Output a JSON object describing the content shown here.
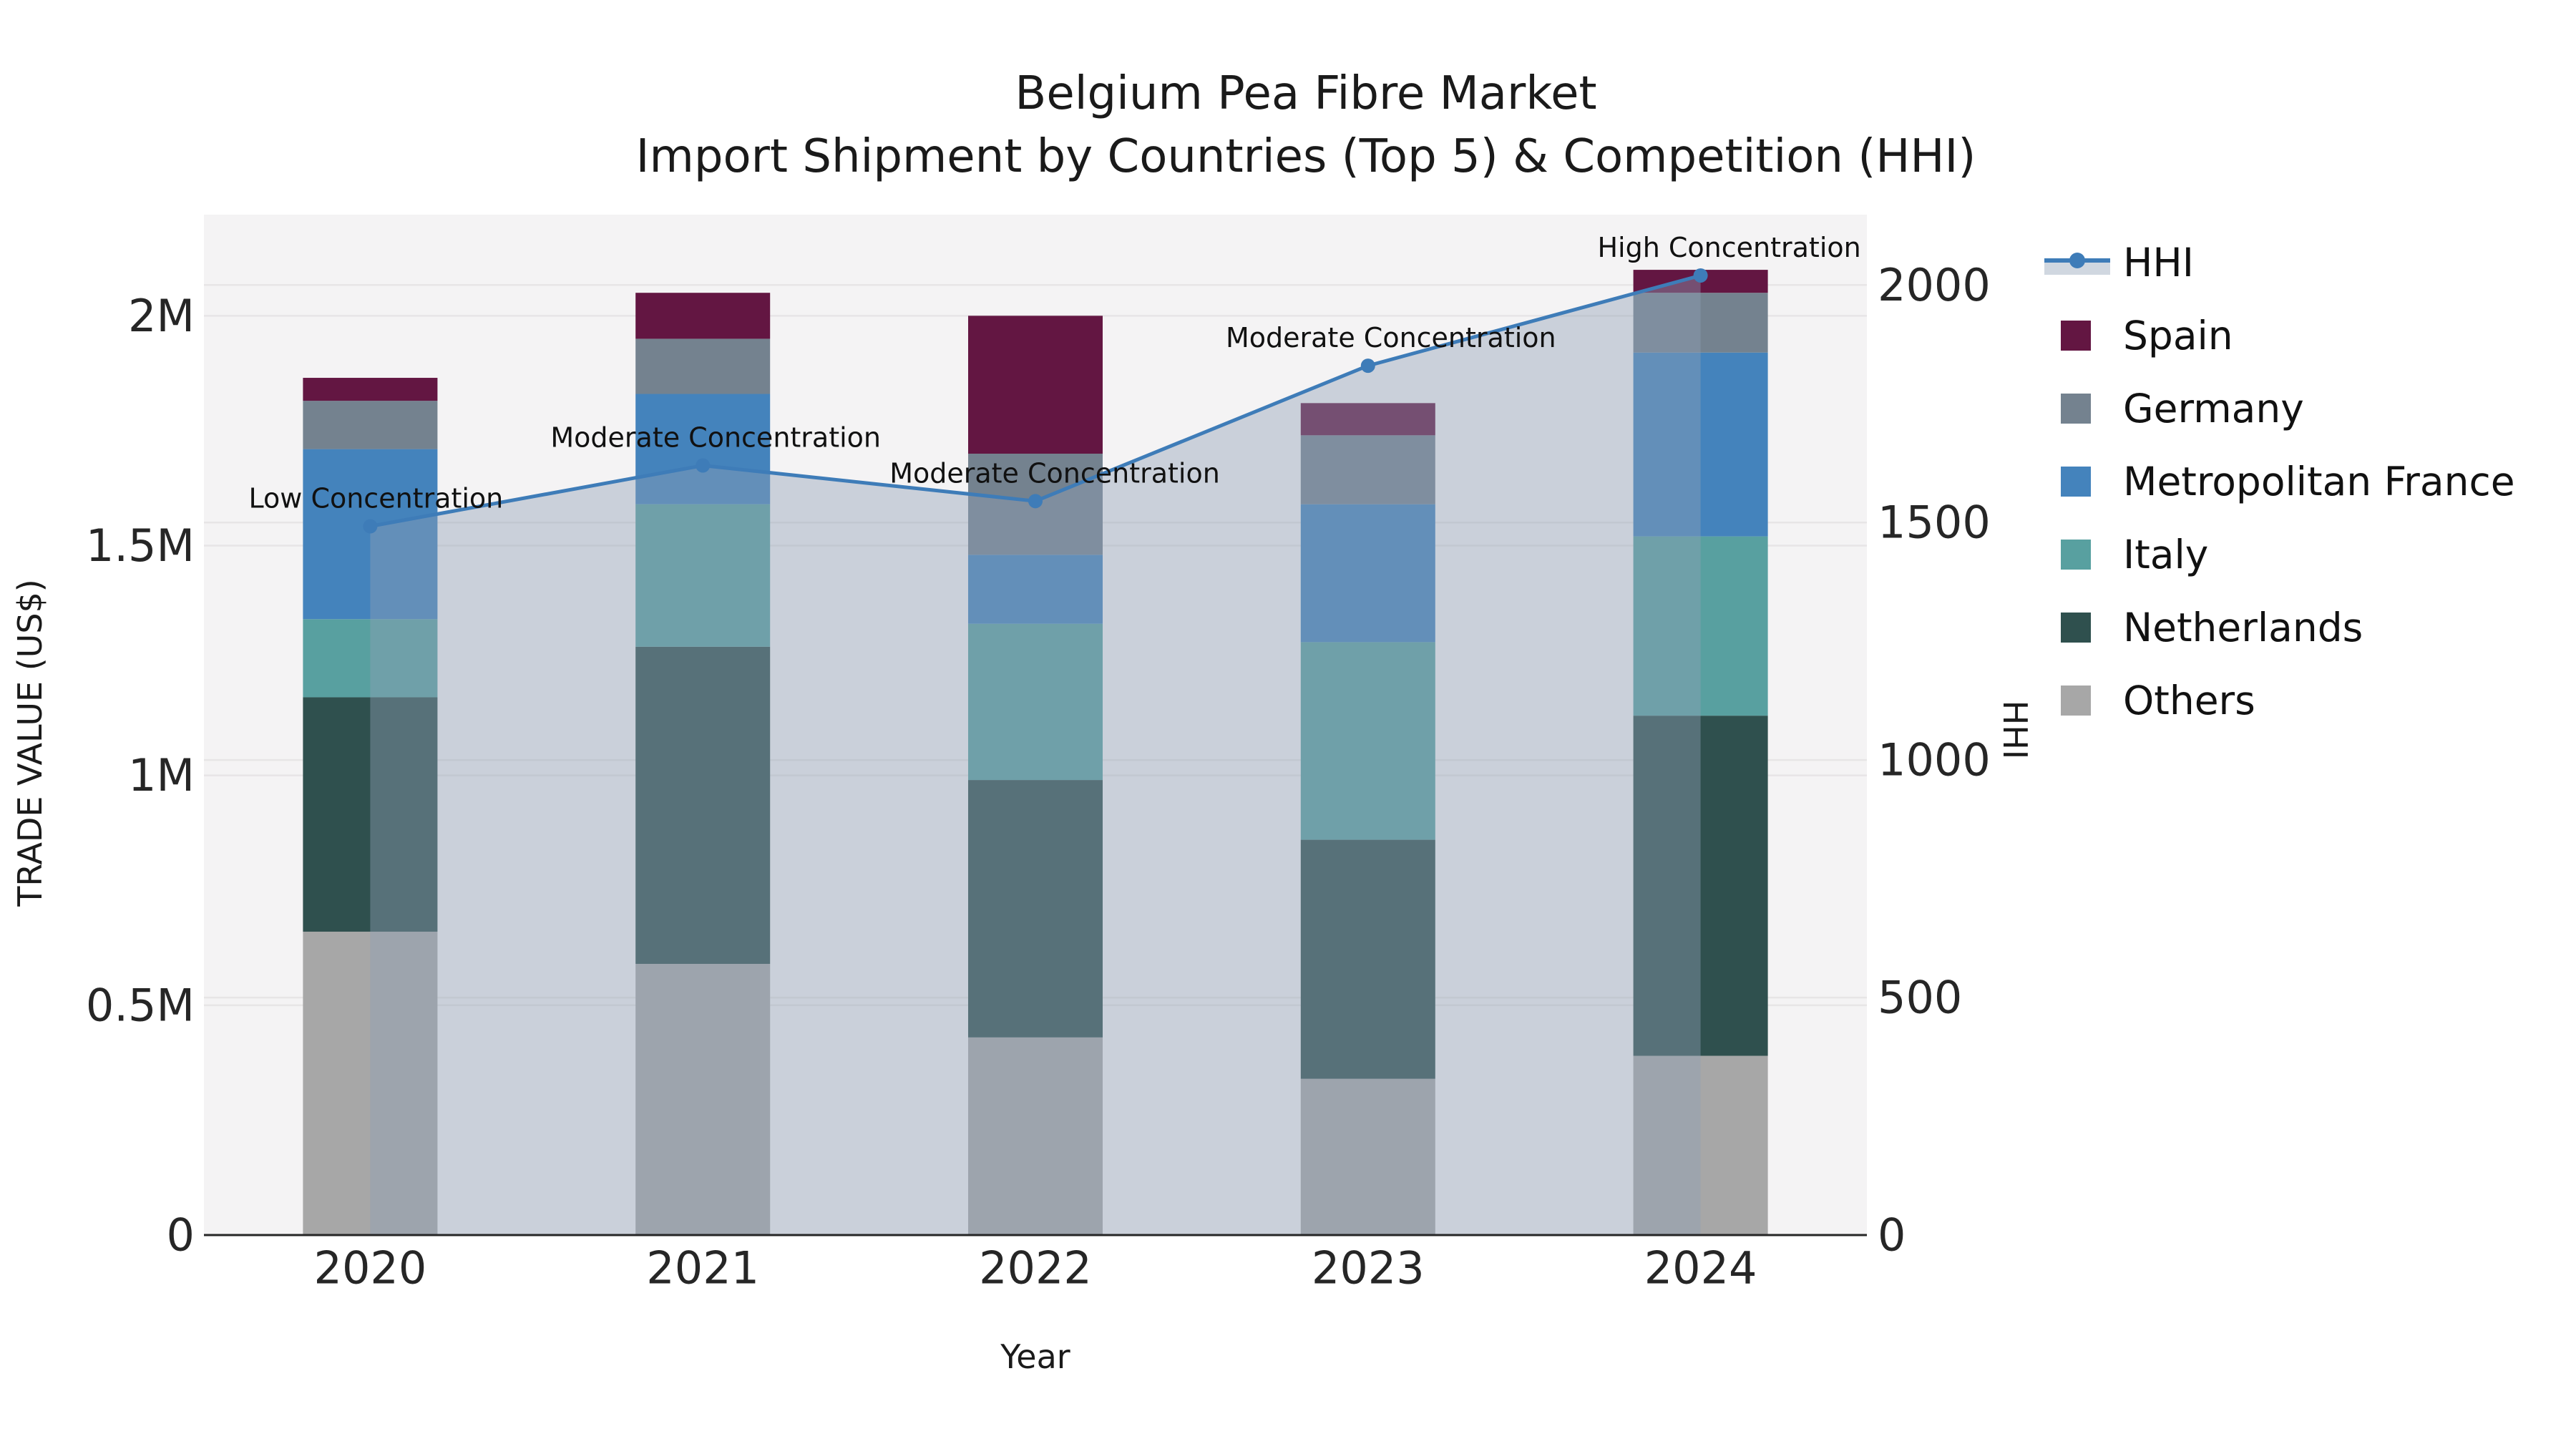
{
  "title": {
    "line1": "Belgium Pea Fibre Market",
    "line2": "Import Shipment by Countries (Top 5) & Competition (HHI)"
  },
  "axes": {
    "x": {
      "label": "Year",
      "categories": [
        "2020",
        "2021",
        "2022",
        "2023",
        "2024"
      ]
    },
    "y_left": {
      "label": "TRADE VALUE (US$)",
      "tick_labels": [
        "0",
        "0.5M",
        "1M",
        "1.5M",
        "2M"
      ],
      "tick_values": [
        0,
        0.5,
        1,
        1.5,
        2
      ],
      "range_millions": [
        0,
        2.22
      ]
    },
    "y_right": {
      "label": "HHI",
      "tick_labels": [
        "0",
        "500",
        "1000",
        "1500",
        "2000"
      ],
      "tick_values": [
        0,
        500,
        1000,
        1500,
        2000
      ],
      "range": [
        0,
        2148
      ]
    }
  },
  "legend": [
    {
      "label": "HHI",
      "type": "line",
      "color": "#3E7CB8"
    },
    {
      "label": "Spain",
      "type": "swatch",
      "color": "#631642"
    },
    {
      "label": "Germany",
      "type": "swatch",
      "color": "#74828F"
    },
    {
      "label": "Metropolitan France",
      "type": "swatch",
      "color": "#4483BC"
    },
    {
      "label": "Italy",
      "type": "swatch",
      "color": "#58A0A0"
    },
    {
      "label": "Netherlands",
      "type": "swatch",
      "color": "#2F504E"
    },
    {
      "label": "Others",
      "type": "swatch",
      "color": "#A7A7A7"
    }
  ],
  "colors": {
    "figure_bg": "#ffffff",
    "plot_bg": "#f4f3f4",
    "grid": "#e7e5e6",
    "axis_line": "#262626",
    "hhi_line": "#3E7CB8",
    "hhi_fill": "rgba(143,160,180,0.42)"
  },
  "chart_data": {
    "type": "stacked-bar+line",
    "title": "Belgium Pea Fibre Market — Import Shipment by Countries (Top 5) & Competition (HHI)",
    "xlabel": "Year",
    "ylabel_left": "TRADE VALUE (US$)",
    "ylabel_right": "HHI",
    "categories": [
      "2020",
      "2021",
      "2022",
      "2023",
      "2024"
    ],
    "unit": "millions of US$",
    "series": [
      {
        "name": "Others",
        "color": "#A7A7A7",
        "values": [
          0.66,
          0.59,
          0.43,
          0.34,
          0.39
        ]
      },
      {
        "name": "Netherlands",
        "color": "#2F504E",
        "values": [
          0.51,
          0.69,
          0.56,
          0.52,
          0.74
        ]
      },
      {
        "name": "Italy",
        "color": "#58A0A0",
        "values": [
          0.17,
          0.31,
          0.34,
          0.43,
          0.39
        ]
      },
      {
        "name": "Metropolitan France",
        "color": "#4483BC",
        "values": [
          0.37,
          0.24,
          0.15,
          0.3,
          0.4
        ]
      },
      {
        "name": "Germany",
        "color": "#74828F",
        "values": [
          0.105,
          0.12,
          0.22,
          0.15,
          0.13
        ]
      },
      {
        "name": "Spain",
        "color": "#631642",
        "values": [
          0.05,
          0.1,
          0.3,
          0.07,
          0.05
        ]
      }
    ],
    "bar_totals_millions": [
      1.865,
      2.05,
      2.0,
      1.81,
      2.1
    ],
    "hhi": {
      "name": "HHI",
      "values": [
        1492,
        1620,
        1545,
        1830,
        2020
      ],
      "line_color": "#3E7CB8",
      "area_fill": "rgba(143,160,180,0.42)"
    },
    "annotations": [
      "Low Concentration",
      "Moderate Concentration",
      "Moderate Concentration",
      "Moderate Concentration",
      "High Concentration"
    ],
    "legend_position": "right",
    "grid": true
  }
}
